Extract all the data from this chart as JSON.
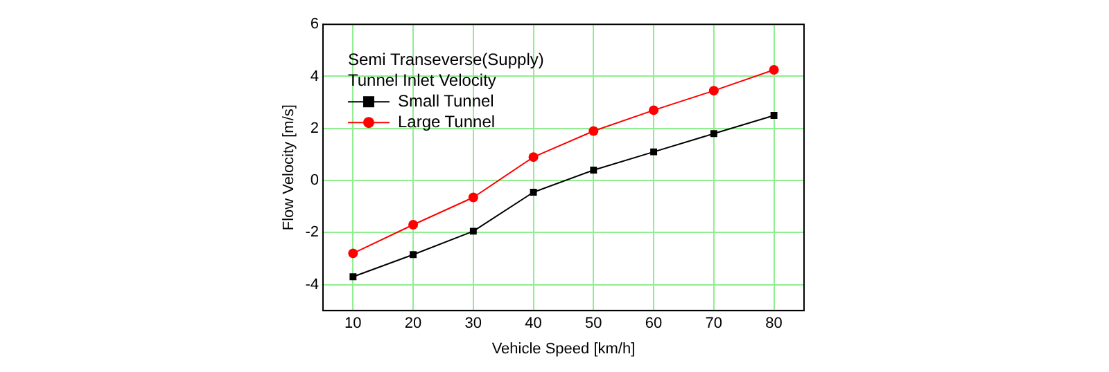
{
  "chart_data": {
    "type": "line",
    "xlabel": "Vehicle Speed [km/h]",
    "ylabel": "Flow Velocity [m/s]",
    "legend_title": "Semi Transeverse(Supply)\nTunnel Inlet Velocity",
    "x": [
      10,
      20,
      30,
      40,
      50,
      60,
      70,
      80
    ],
    "series": [
      {
        "name": "Small Tunnel",
        "color": "#000000",
        "marker": "square",
        "values": [
          -3.7,
          -2.85,
          -1.95,
          -0.45,
          0.4,
          1.1,
          1.8,
          2.5
        ]
      },
      {
        "name": "Large Tunnel",
        "color": "#ff0000",
        "marker": "circle",
        "values": [
          -2.8,
          -1.7,
          -0.65,
          0.9,
          1.9,
          2.7,
          3.45,
          4.25
        ]
      }
    ],
    "xlim": [
      5,
      85
    ],
    "xticks": [
      10,
      20,
      30,
      40,
      50,
      60,
      70,
      80
    ],
    "ylim": [
      -5,
      6
    ],
    "yticks": [
      -4,
      -2,
      0,
      2,
      4,
      6
    ],
    "grid": true,
    "legend": "top left",
    "line_style": "solid"
  }
}
